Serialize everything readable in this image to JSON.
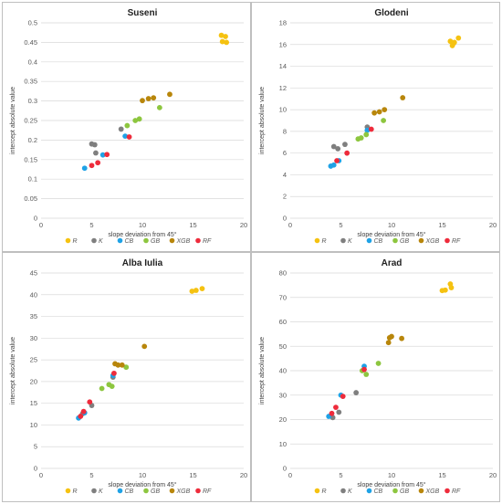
{
  "legend_items": [
    {
      "key": "R",
      "color": "#f5c211"
    },
    {
      "key": "K",
      "color": "#7f7f7f"
    },
    {
      "key": "CB",
      "color": "#1fa2e6"
    },
    {
      "key": "GB",
      "color": "#8dc63f"
    },
    {
      "key": "XGB",
      "color": "#b8860b"
    },
    {
      "key": "RF",
      "color": "#ee2b3b"
    }
  ],
  "chart_data": [
    {
      "type": "scatter",
      "title": "Suseni",
      "xlabel": "slope deviation from 45°",
      "ylabel": "intercept absolute value",
      "xlim": [
        0,
        20
      ],
      "ylim": [
        0,
        0.5
      ],
      "xticks": [
        "0",
        "5",
        "10",
        "15",
        "20"
      ],
      "yticks": [
        "0",
        "0.05",
        "0.1",
        "0.15",
        "0.2",
        "0.25",
        "0.3",
        "0.35",
        "0.4",
        "0.45",
        "0.5"
      ],
      "grid": "horizontal",
      "legend": "bottom",
      "series": [
        {
          "name": "R",
          "points": [
            [
              17.8,
              0.468
            ],
            [
              18.2,
              0.465
            ],
            [
              17.9,
              0.452
            ],
            [
              18.3,
              0.45
            ]
          ]
        },
        {
          "name": "K",
          "points": [
            [
              5.0,
              0.19
            ],
            [
              5.3,
              0.188
            ],
            [
              5.4,
              0.167
            ],
            [
              7.9,
              0.228
            ]
          ]
        },
        {
          "name": "CB",
          "points": [
            [
              4.3,
              0.128
            ],
            [
              6.1,
              0.162
            ],
            [
              8.3,
              0.21
            ]
          ]
        },
        {
          "name": "GB",
          "points": [
            [
              8.5,
              0.237
            ],
            [
              9.3,
              0.25
            ],
            [
              9.7,
              0.254
            ],
            [
              11.7,
              0.283
            ]
          ]
        },
        {
          "name": "XGB",
          "points": [
            [
              10.0,
              0.301
            ],
            [
              10.6,
              0.306
            ],
            [
              11.1,
              0.308
            ],
            [
              12.7,
              0.317
            ]
          ]
        },
        {
          "name": "RF",
          "points": [
            [
              5.0,
              0.135
            ],
            [
              5.6,
              0.142
            ],
            [
              6.5,
              0.163
            ],
            [
              8.7,
              0.208
            ]
          ]
        }
      ]
    },
    {
      "type": "scatter",
      "title": "Glodeni",
      "xlabel": "slope deviation from 45°",
      "ylabel": "intercept absolute value",
      "xlim": [
        0,
        20
      ],
      "ylim": [
        0,
        18
      ],
      "xticks": [
        "0",
        "5",
        "10",
        "15",
        "20"
      ],
      "yticks": [
        "0",
        "2",
        "4",
        "6",
        "8",
        "10",
        "12",
        "14",
        "16",
        "18"
      ],
      "grid": "horizontal",
      "legend": "bottom",
      "series": [
        {
          "name": "R",
          "points": [
            [
              15.8,
              16.3
            ],
            [
              16.1,
              16.1
            ],
            [
              16.0,
              15.9
            ],
            [
              16.6,
              16.6
            ],
            [
              16.2,
              16.2
            ]
          ]
        },
        {
          "name": "K",
          "points": [
            [
              4.3,
              6.6
            ],
            [
              4.7,
              6.4
            ],
            [
              5.4,
              6.8
            ],
            [
              7.6,
              8.4
            ]
          ]
        },
        {
          "name": "CB",
          "points": [
            [
              4.0,
              4.8
            ],
            [
              4.3,
              4.9
            ],
            [
              4.8,
              5.3
            ],
            [
              7.6,
              8.1
            ]
          ]
        },
        {
          "name": "GB",
          "points": [
            [
              6.7,
              7.3
            ],
            [
              7.0,
              7.4
            ],
            [
              7.5,
              7.7
            ],
            [
              9.2,
              9.0
            ]
          ]
        },
        {
          "name": "XGB",
          "points": [
            [
              8.3,
              9.7
            ],
            [
              8.8,
              9.8
            ],
            [
              9.3,
              10.0
            ],
            [
              11.1,
              11.1
            ]
          ]
        },
        {
          "name": "RF",
          "points": [
            [
              4.6,
              5.3
            ],
            [
              5.6,
              6.0
            ],
            [
              8.0,
              8.2
            ]
          ]
        }
      ]
    },
    {
      "type": "scatter",
      "title": "Alba Iulia",
      "xlabel": "slope deviation from 45°",
      "ylabel": "intercept absolute value",
      "xlim": [
        0,
        20
      ],
      "ylim": [
        0,
        45
      ],
      "xticks": [
        "0",
        "5",
        "10",
        "15",
        "20"
      ],
      "yticks": [
        "0",
        "5",
        "10",
        "15",
        "20",
        "25",
        "30",
        "35",
        "40",
        "45"
      ],
      "grid": "horizontal",
      "legend": "bottom",
      "series": [
        {
          "name": "R",
          "points": [
            [
              14.9,
              40.8
            ],
            [
              15.3,
              41.0
            ],
            [
              15.9,
              41.4
            ]
          ]
        },
        {
          "name": "K",
          "points": [
            [
              4.1,
              12.6
            ],
            [
              5.0,
              14.5
            ],
            [
              7.1,
              21.0
            ]
          ]
        },
        {
          "name": "CB",
          "points": [
            [
              3.7,
              11.6
            ],
            [
              4.3,
              12.8
            ],
            [
              7.1,
              21.4
            ]
          ]
        },
        {
          "name": "GB",
          "points": [
            [
              6.0,
              18.4
            ],
            [
              6.7,
              19.3
            ],
            [
              7.0,
              18.9
            ],
            [
              8.4,
              23.3
            ]
          ]
        },
        {
          "name": "XGB",
          "points": [
            [
              7.3,
              24.1
            ],
            [
              7.6,
              23.8
            ],
            [
              8.0,
              23.8
            ],
            [
              10.2,
              28.1
            ]
          ]
        },
        {
          "name": "RF",
          "points": [
            [
              3.9,
              12.0
            ],
            [
              4.2,
              13.1
            ],
            [
              4.8,
              15.3
            ],
            [
              7.2,
              21.9
            ]
          ]
        }
      ]
    },
    {
      "type": "scatter",
      "title": "Arad",
      "xlabel": "slope deviation from 45°",
      "ylabel": "intercept absolute value",
      "xlim": [
        0,
        20
      ],
      "ylim": [
        0,
        80
      ],
      "xticks": [
        "0",
        "5",
        "10",
        "15",
        "20"
      ],
      "yticks": [
        "0",
        "10",
        "20",
        "30",
        "40",
        "50",
        "60",
        "70",
        "80"
      ],
      "grid": "horizontal",
      "legend": "bottom",
      "series": [
        {
          "name": "R",
          "points": [
            [
              15.0,
              72.8
            ],
            [
              15.3,
              73.0
            ],
            [
              15.8,
              75.5
            ],
            [
              15.9,
              74.0
            ]
          ]
        },
        {
          "name": "K",
          "points": [
            [
              4.2,
              20.8
            ],
            [
              4.8,
              23.0
            ],
            [
              6.5,
              31.0
            ]
          ]
        },
        {
          "name": "CB",
          "points": [
            [
              3.8,
              21.3
            ],
            [
              5.0,
              30.0
            ],
            [
              7.3,
              41.8
            ]
          ]
        },
        {
          "name": "GB",
          "points": [
            [
              7.1,
              40.0
            ],
            [
              7.5,
              38.5
            ],
            [
              8.7,
              43.0
            ]
          ]
        },
        {
          "name": "XGB",
          "points": [
            [
              9.7,
              51.5
            ],
            [
              9.8,
              53.5
            ],
            [
              10.0,
              54.0
            ],
            [
              11.0,
              53.2
            ]
          ]
        },
        {
          "name": "RF",
          "points": [
            [
              4.1,
              22.5
            ],
            [
              4.5,
              25.0
            ],
            [
              5.2,
              29.5
            ],
            [
              7.3,
              40.5
            ]
          ]
        }
      ]
    }
  ]
}
